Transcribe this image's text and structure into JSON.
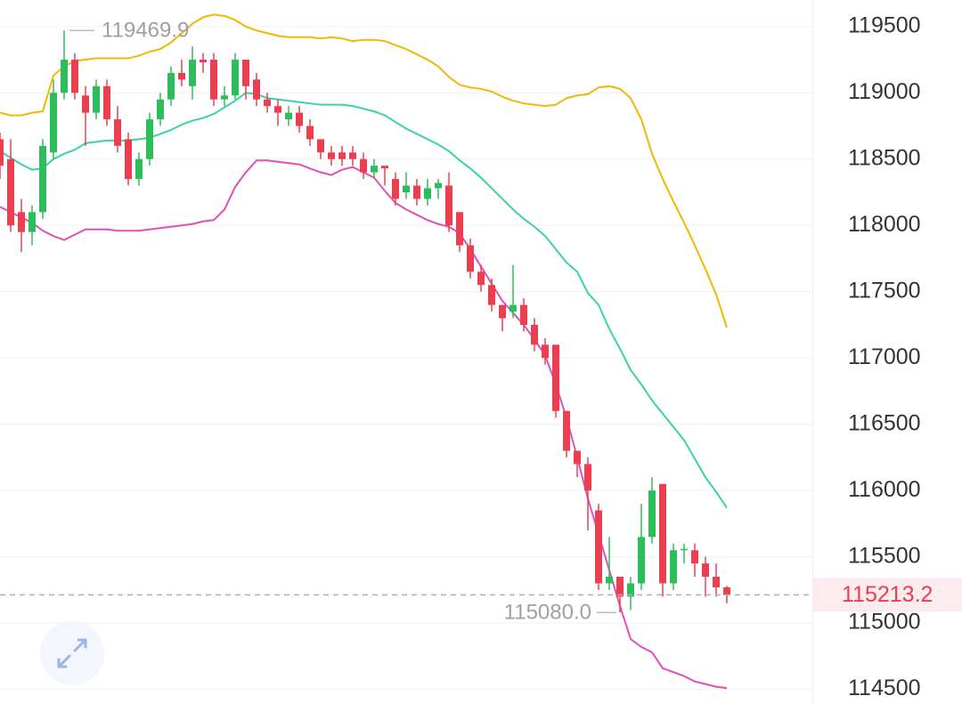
{
  "chart_data": {
    "type": "candlestick",
    "open": [
      118650,
      118500,
      118100,
      117950,
      118100,
      118550,
      119000,
      119250,
      118980,
      118850,
      119050,
      118800,
      118650,
      118350,
      118500,
      118800,
      118950,
      119150,
      119050,
      119250,
      119250,
      118950,
      118980,
      119250,
      119100,
      118950,
      118900,
      118800,
      118850,
      118750,
      118650,
      118550,
      118550,
      118550,
      118500,
      118400,
      118450,
      118350,
      118250,
      118300,
      118200,
      118280,
      118300,
      118100,
      117850,
      117650,
      117550,
      117400,
      117350,
      117400,
      117250,
      117100,
      117100,
      116600,
      116300,
      116200,
      115850,
      115300,
      115350,
      115200,
      115300,
      115650,
      116050,
      115300,
      115550,
      115550,
      115450,
      115350,
      115270
    ],
    "high": [
      118700,
      118650,
      118200,
      118150,
      118650,
      119100,
      119469.9,
      119300,
      119050,
      119100,
      119100,
      118900,
      118700,
      118550,
      118850,
      119000,
      119200,
      119250,
      119350,
      119300,
      119300,
      119050,
      119300,
      119250,
      119150,
      119000,
      118950,
      118900,
      118900,
      118800,
      118650,
      118600,
      118600,
      118600,
      118550,
      118500,
      118450,
      118400,
      118400,
      118350,
      118350,
      118350,
      118400,
      118100,
      117900,
      117700,
      117600,
      117400,
      117700,
      117450,
      117300,
      117150,
      117100,
      116600,
      116300,
      116250,
      115900,
      115650,
      115350,
      115350,
      115900,
      116100,
      116050,
      115600,
      115600,
      115600,
      115500,
      115450,
      115280
    ],
    "low": [
      118350,
      117950,
      117800,
      117850,
      118050,
      118500,
      118950,
      118950,
      118600,
      118800,
      118750,
      118550,
      118300,
      118300,
      118450,
      118750,
      118900,
      119050,
      118950,
      119150,
      118900,
      118900,
      118950,
      118950,
      118900,
      118850,
      118750,
      118750,
      118700,
      118600,
      118500,
      118450,
      118450,
      118450,
      118350,
      118350,
      118300,
      118150,
      118200,
      118150,
      118150,
      118200,
      117950,
      117800,
      117600,
      117500,
      117350,
      117200,
      117300,
      117200,
      117050,
      116950,
      116550,
      116250,
      116100,
      115700,
      115250,
      115250,
      115080.0,
      115100,
      115250,
      115600,
      115200,
      115250,
      115450,
      115350,
      115200,
      115200,
      115150
    ],
    "close": [
      118450,
      118000,
      117950,
      118100,
      118600,
      119000,
      119250,
      119000,
      118850,
      119050,
      118800,
      118600,
      118350,
      118500,
      118800,
      118950,
      119150,
      119100,
      119250,
      119230,
      118950,
      118980,
      119250,
      119050,
      118950,
      118900,
      118850,
      118850,
      118750,
      118650,
      118550,
      118500,
      118500,
      118500,
      118400,
      118450,
      118430,
      118200,
      118300,
      118200,
      118280,
      118320,
      118000,
      117850,
      117650,
      117550,
      117400,
      117300,
      117400,
      117250,
      117100,
      117000,
      116600,
      116300,
      116200,
      116000,
      115300,
      115350,
      115200,
      115300,
      115650,
      116000,
      115300,
      115550,
      115560,
      115450,
      115350,
      115270,
      115213.2
    ],
    "up_color": "#2dbd5a",
    "down_color": "#ea3f50",
    "bands": [
      {
        "color": "#f2b705",
        "values": [
          118850,
          118830,
          118830,
          118850,
          118860,
          119130,
          119200,
          119240,
          119250,
          119260,
          119260,
          119260,
          119260,
          119280,
          119310,
          119330,
          119380,
          119450,
          119520,
          119570,
          119590,
          119580,
          119550,
          119500,
          119470,
          119450,
          119430,
          119420,
          119420,
          119420,
          119410,
          119420,
          119410,
          119390,
          119400,
          119400,
          119390,
          119360,
          119330,
          119290,
          119250,
          119200,
          119120,
          119060,
          119040,
          119030,
          119010,
          118970,
          118940,
          118920,
          118910,
          118900,
          118910,
          118960,
          118980,
          118990,
          119040,
          119050,
          119030,
          118960,
          118800,
          118540,
          118350,
          118180,
          118020,
          117850,
          117670,
          117480,
          117230
        ]
      },
      {
        "color": "#3ad3a6",
        "values": [
          118560,
          118510,
          118460,
          118420,
          118430,
          118500,
          118540,
          118570,
          118620,
          118630,
          118640,
          118640,
          118640,
          118650,
          118660,
          118690,
          118720,
          118760,
          118790,
          118810,
          118840,
          118890,
          118940,
          119000,
          118990,
          118960,
          118950,
          118940,
          118930,
          118920,
          118910,
          118910,
          118910,
          118900,
          118880,
          118860,
          118830,
          118780,
          118730,
          118690,
          118650,
          118610,
          118560,
          118490,
          118430,
          118360,
          118280,
          118200,
          118120,
          118050,
          117990,
          117920,
          117820,
          117720,
          117650,
          117490,
          117400,
          117220,
          117070,
          116910,
          116800,
          116680,
          116580,
          116480,
          116380,
          116240,
          116100,
          115990,
          115870
        ]
      },
      {
        "color": "#e14fb8",
        "values": [
          118140,
          118100,
          118060,
          118020,
          117960,
          117920,
          117890,
          117930,
          117970,
          117970,
          117970,
          117960,
          117960,
          117960,
          117970,
          117980,
          117990,
          118000,
          118010,
          118030,
          118040,
          118120,
          118290,
          118400,
          118490,
          118490,
          118480,
          118470,
          118460,
          118430,
          118400,
          118380,
          118420,
          118440,
          118400,
          118360,
          118260,
          118170,
          118120,
          118080,
          118040,
          118010,
          117990,
          117940,
          117820,
          117690,
          117560,
          117430,
          117340,
          117250,
          117140,
          117020,
          116800,
          116550,
          116250,
          115940,
          115670,
          115400,
          115130,
          114880,
          114820,
          114780,
          114660,
          114630,
          114600,
          114560,
          114540,
          114520,
          114510
        ]
      }
    ],
    "ylim": [
      114390,
      119700
    ],
    "yticks": [
      114500,
      115000,
      115500,
      116000,
      116500,
      117000,
      117500,
      118000,
      118500,
      119000,
      119500
    ],
    "grid": true,
    "high_label": "119469.9",
    "low_label": "115080.0",
    "last_label": "115213.2",
    "last_color": "#ea3f50"
  }
}
